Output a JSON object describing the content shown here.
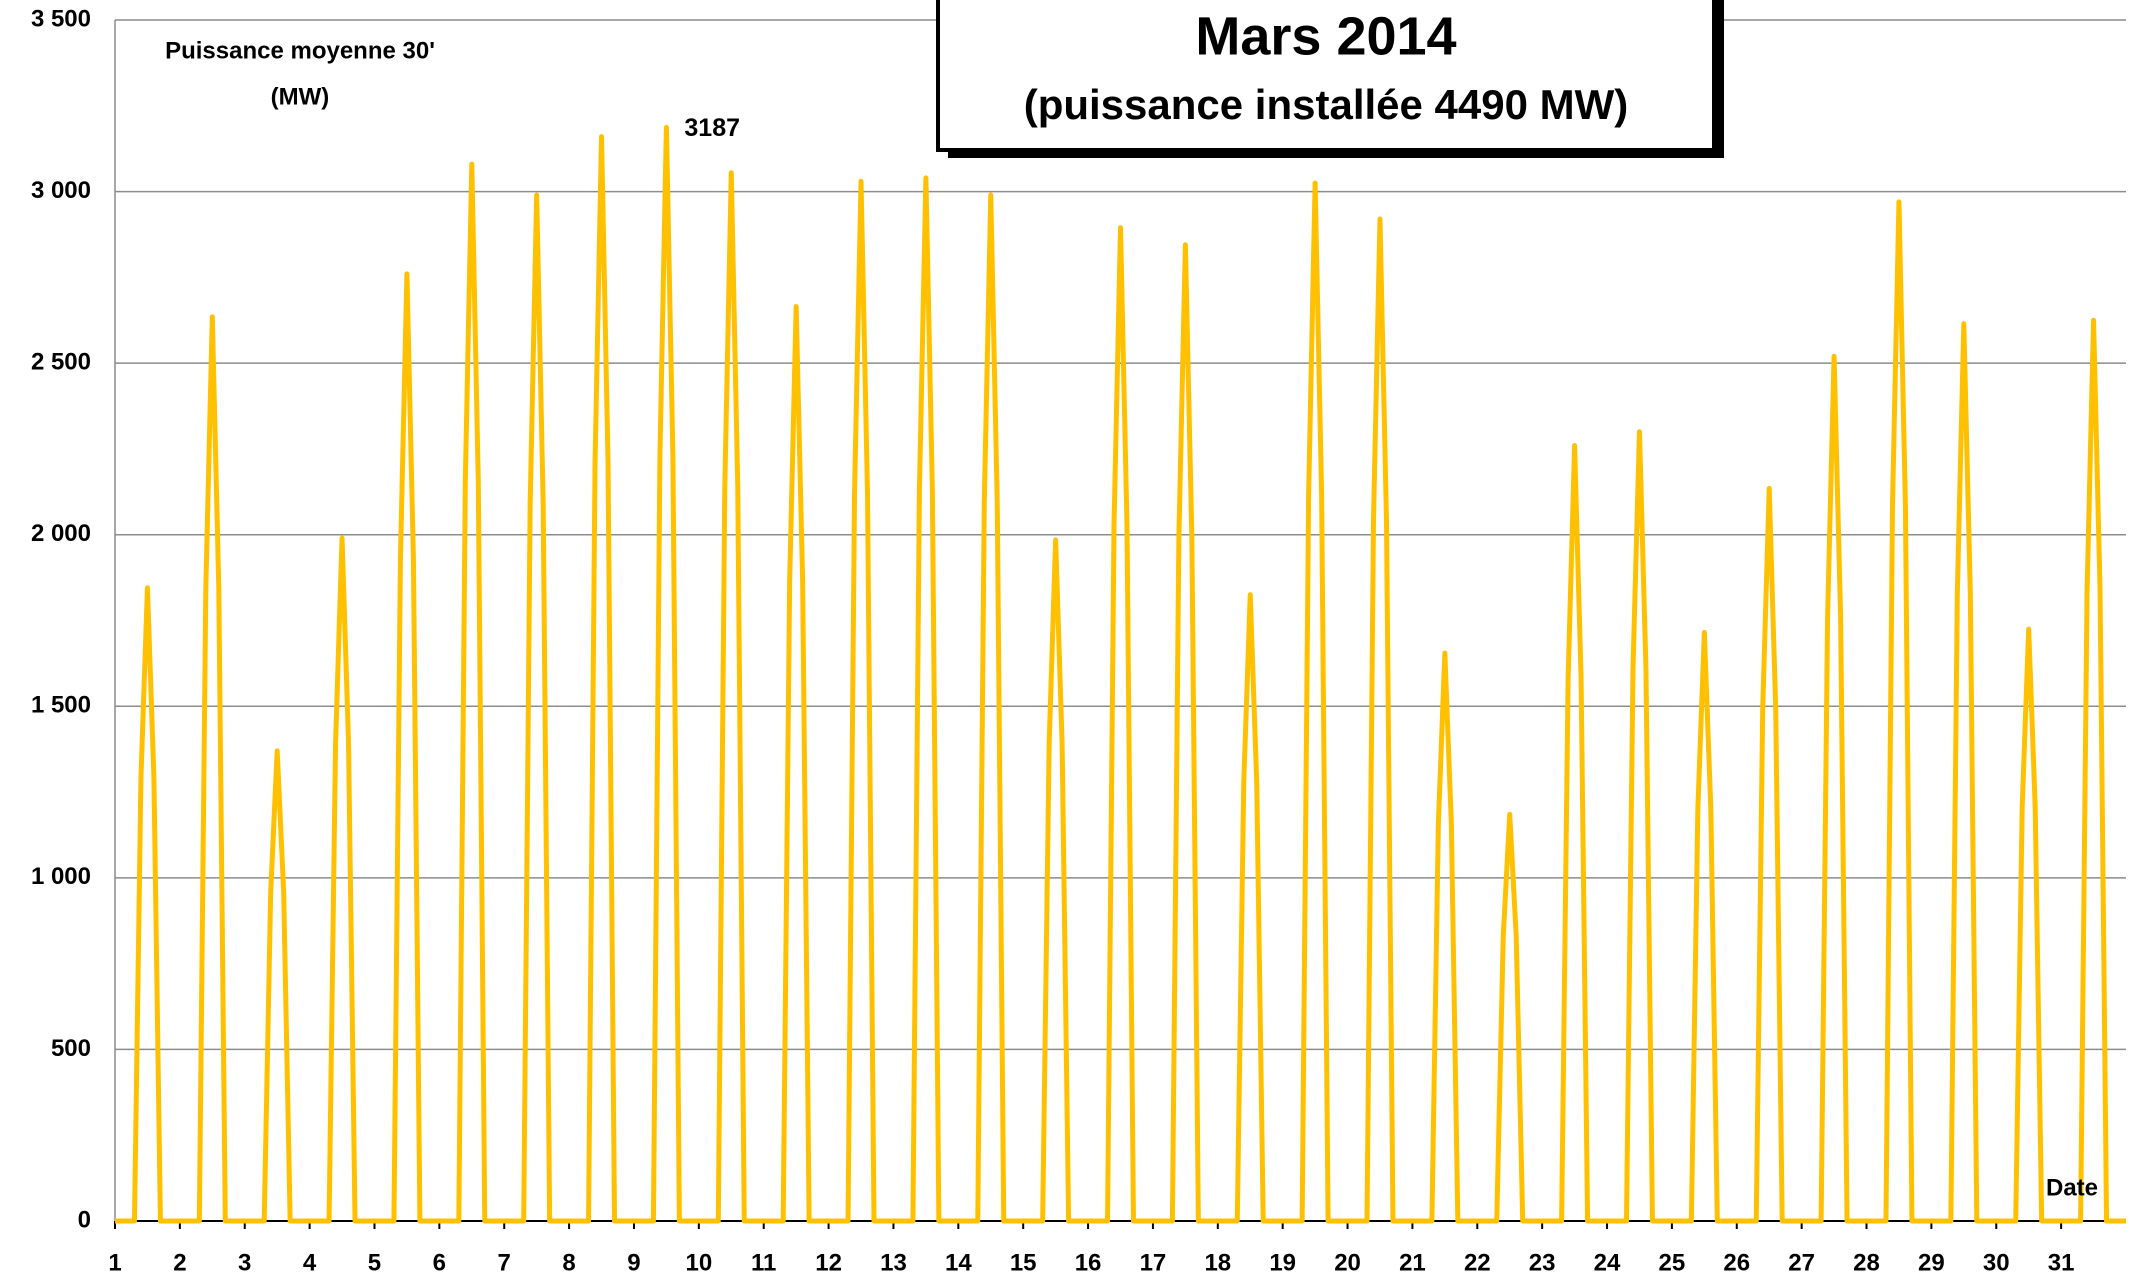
{
  "chart_data": {
    "type": "line",
    "title": "Mars 2014",
    "subtitle": "(puissance installée 4490 MW)",
    "ylabel": [
      "Puissance moyenne 30'",
      "(MW)"
    ],
    "xlabel": "Date",
    "color": "#FFC000",
    "grid": true,
    "xlim": [
      1,
      32
    ],
    "xticks": [
      1,
      2,
      3,
      4,
      5,
      6,
      7,
      8,
      9,
      10,
      11,
      12,
      13,
      14,
      15,
      16,
      17,
      18,
      19,
      20,
      21,
      22,
      23,
      24,
      25,
      26,
      27,
      28,
      29,
      30,
      31
    ],
    "ylim": [
      0,
      3500
    ],
    "yticks": [
      0,
      {
        "value": 500,
        "label": "500"
      },
      {
        "value": 1000,
        "label": "1 000"
      },
      {
        "value": 1500,
        "label": "1 500"
      },
      {
        "value": 2000,
        "label": "2 000"
      },
      {
        "value": 2500,
        "label": "2 500"
      },
      {
        "value": 3000,
        "label": "3 000"
      },
      {
        "value": 3500,
        "label": "3 500"
      }
    ],
    "annotations": [
      {
        "text": "3187",
        "x": 9.5,
        "y": 3187,
        "color": "#ff0000"
      }
    ],
    "x": [
      1,
      1.3,
      1.4,
      1.5,
      1.6,
      1.7,
      2.3,
      2.4,
      2.5,
      2.6,
      2.7,
      3.3,
      3.4,
      3.5,
      3.6,
      3.7,
      4.3,
      4.4,
      4.5,
      4.6,
      4.7,
      5.3,
      5.4,
      5.5,
      5.6,
      5.7,
      6.3,
      6.4,
      6.5,
      6.6,
      6.7,
      7.3,
      7.4,
      7.5,
      7.6,
      7.7,
      8.3,
      8.4,
      8.5,
      8.6,
      8.7,
      9.3,
      9.4,
      9.5,
      9.6,
      9.7,
      10.3,
      10.4,
      10.5,
      10.6,
      10.7,
      11.3,
      11.4,
      11.5,
      11.6,
      11.7,
      12.3,
      12.4,
      12.5,
      12.6,
      12.7,
      13.3,
      13.4,
      13.5,
      13.6,
      13.7,
      14.3,
      14.4,
      14.5,
      14.6,
      14.7,
      15.3,
      15.4,
      15.5,
      15.6,
      15.7,
      16.3,
      16.4,
      16.5,
      16.6,
      16.7,
      17.3,
      17.4,
      17.5,
      17.6,
      17.7,
      18.3,
      18.4,
      18.5,
      18.6,
      18.7,
      19.3,
      19.4,
      19.5,
      19.6,
      19.7,
      20.3,
      20.4,
      20.5,
      20.6,
      20.7,
      21.3,
      21.4,
      21.5,
      21.6,
      21.7,
      22.3,
      22.4,
      22.5,
      22.6,
      22.7,
      23.3,
      23.4,
      23.5,
      23.6,
      23.7,
      24.3,
      24.4,
      24.5,
      24.6,
      24.7,
      25.3,
      25.4,
      25.5,
      25.6,
      25.7,
      26.3,
      26.4,
      26.5,
      26.6,
      26.7,
      27.3,
      27.4,
      27.5,
      27.6,
      27.7,
      28.3,
      28.4,
      28.5,
      28.6,
      28.7,
      29.3,
      29.4,
      29.5,
      29.6,
      29.7,
      30.3,
      30.4,
      30.5,
      30.6,
      30.7,
      31.3,
      31.4,
      31.5,
      31.6,
      31.7,
      32
    ],
    "values": [
      0,
      0,
      1292,
      1845,
      1292,
      0,
      0,
      1845,
      2635,
      1845,
      0,
      0,
      959,
      1370,
      959,
      0,
      0,
      1393,
      1990,
      1393,
      0,
      0,
      1932,
      2760,
      1932,
      0,
      0,
      2156,
      3080,
      2156,
      0,
      0,
      2093,
      2990,
      2093,
      0,
      0,
      2212,
      3160,
      2212,
      0,
      0,
      2231,
      3187,
      2231,
      0,
      0,
      2139,
      3055,
      2139,
      0,
      0,
      1866,
      2665,
      1866,
      0,
      0,
      2121,
      3030,
      2121,
      0,
      0,
      2128,
      3040,
      2128,
      0,
      0,
      2093,
      2990,
      2093,
      0,
      0,
      1390,
      1985,
      1390,
      0,
      0,
      2027,
      2895,
      2027,
      0,
      0,
      1992,
      2845,
      1992,
      0,
      0,
      1278,
      1825,
      1278,
      0,
      0,
      2118,
      3025,
      2118,
      0,
      0,
      2044,
      2920,
      2044,
      0,
      0,
      1159,
      1655,
      1159,
      0,
      0,
      830,
      1185,
      830,
      0,
      0,
      1582,
      2260,
      1582,
      0,
      0,
      1610,
      2300,
      1610,
      0,
      0,
      1201,
      1715,
      1201,
      0,
      0,
      1495,
      2135,
      1495,
      0,
      0,
      1764,
      2520,
      1764,
      0,
      0,
      2079,
      2970,
      2079,
      0,
      0,
      1831,
      2615,
      1831,
      0,
      0,
      1208,
      1725,
      1208,
      0,
      0,
      1838,
      2625,
      1838,
      0,
      0
    ]
  }
}
